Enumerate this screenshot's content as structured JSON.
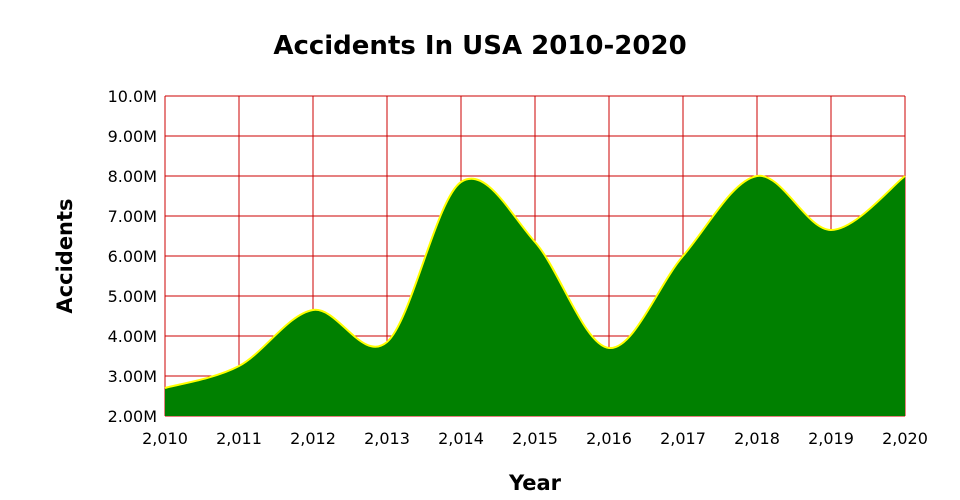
{
  "chart_data": {
    "type": "area",
    "title": "Accidents In USA 2010-2020",
    "xlabel": "Year",
    "ylabel": "Accidents",
    "x": [
      2010,
      2011,
      2012,
      2013,
      2014,
      2015,
      2016,
      2017,
      2018,
      2019,
      2020
    ],
    "x_tick_labels": [
      "2,010",
      "2,011",
      "2,012",
      "2,013",
      "2,014",
      "2,015",
      "2,016",
      "2,017",
      "2,018",
      "2,019",
      "2,020"
    ],
    "series": [
      {
        "values": [
          2700000,
          3250000,
          4650000,
          3850000,
          7850000,
          6350000,
          3700000,
          6000000,
          8000000,
          6650000,
          8000000
        ]
      }
    ],
    "ylim": [
      2000000,
      10000000
    ],
    "y_tick_labels": [
      "2.00M",
      "3.00M",
      "4.00M",
      "5.00M",
      "6.00M",
      "7.00M",
      "8.00M",
      "9.00M",
      "10.0M"
    ],
    "grid": true,
    "colors": {
      "fill": "#008000",
      "line": "#ffff00",
      "grid": "#cc0000"
    }
  }
}
